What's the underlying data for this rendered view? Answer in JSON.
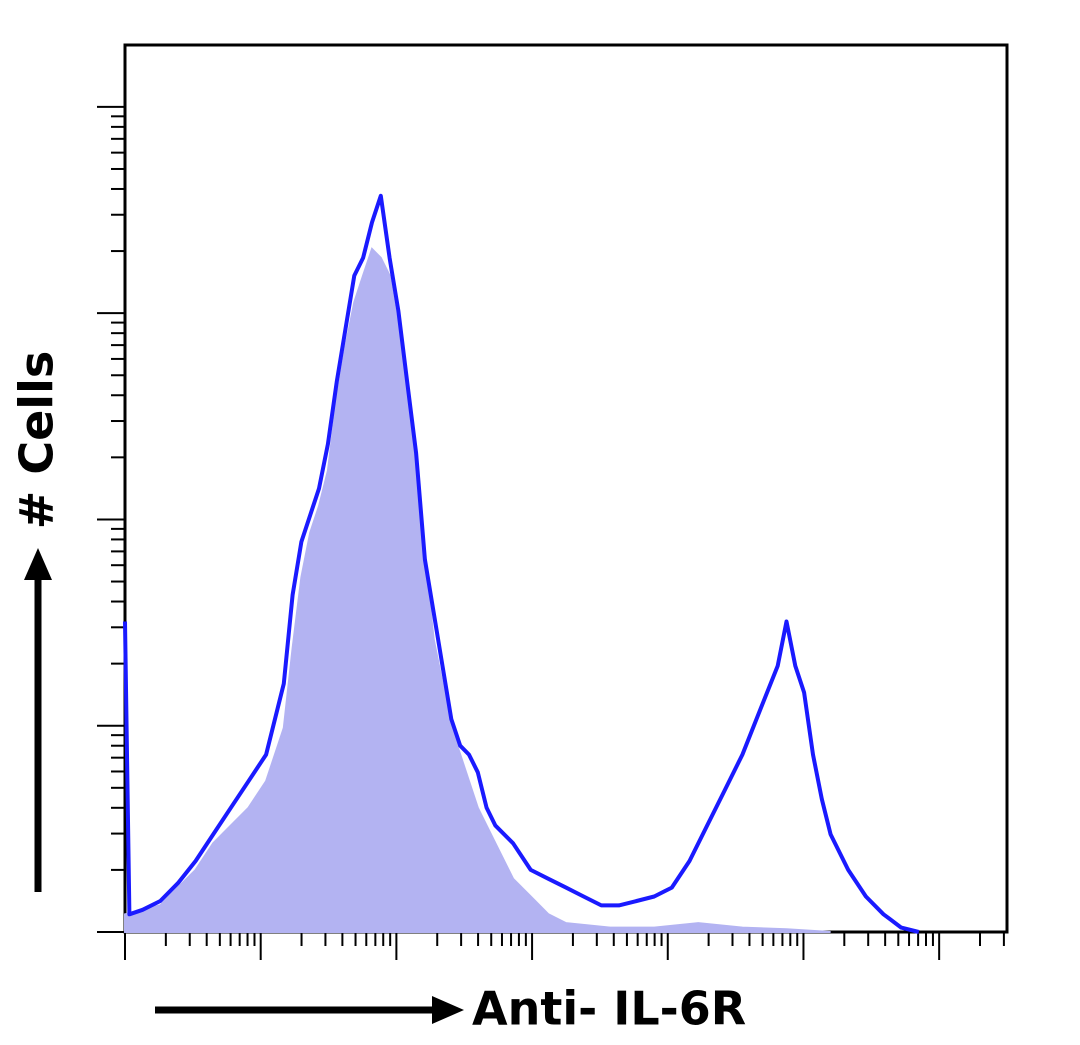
{
  "chart_data": {
    "type": "line",
    "y_label": "# Cells",
    "x_label": "Anti- IL-6R",
    "xlim": [
      0,
      100
    ],
    "ylim": [
      0,
      100
    ],
    "series": [
      {
        "color": "#b3b3f2",
        "fill": true,
        "x": [
          0,
          4,
          6,
          8,
          10,
          12,
          14,
          16,
          18,
          19,
          20,
          21,
          22,
          23,
          24,
          25,
          26,
          27,
          28,
          29,
          30,
          31,
          32,
          33,
          34,
          35,
          36,
          37,
          38,
          39,
          40,
          42,
          44,
          46,
          48,
          50,
          55,
          60,
          65,
          70,
          75,
          80
        ],
        "values": [
          2,
          3,
          5,
          7,
          10,
          12,
          14,
          17,
          23,
          32,
          40,
          45,
          48,
          52,
          60,
          66,
          71,
          74,
          77,
          76,
          74,
          68,
          60,
          52,
          42,
          33,
          28,
          23,
          20,
          17,
          14,
          10,
          6,
          4,
          2,
          1,
          0.5,
          0.5,
          1,
          0.5,
          0.3,
          0
        ]
      },
      {
        "color": "#1a1aff",
        "fill": false,
        "x": [
          0,
          0.5,
          2,
          4,
          6,
          8,
          10,
          12,
          14,
          16,
          18,
          19,
          20,
          21,
          22,
          23,
          24,
          25,
          26,
          27,
          28,
          29,
          30,
          31,
          32,
          33,
          34,
          35,
          36,
          37,
          38,
          39,
          40,
          41,
          42,
          44,
          46,
          48,
          50,
          52,
          54,
          56,
          58,
          60,
          62,
          64,
          66,
          68,
          70,
          72,
          74,
          75,
          76,
          77,
          78,
          79,
          80,
          82,
          84,
          86,
          88,
          90
        ],
        "values": [
          35,
          2,
          2.5,
          3.5,
          5.5,
          8,
          11,
          14,
          17,
          20,
          28,
          38,
          44,
          47,
          50,
          55,
          62,
          68,
          74,
          76,
          80,
          83,
          76,
          70,
          62,
          54,
          42,
          36,
          30,
          24,
          21,
          20,
          18,
          14,
          12,
          10,
          7,
          6,
          5,
          4,
          3,
          3,
          3.5,
          4,
          5,
          8,
          12,
          16,
          20,
          25,
          30,
          35,
          30,
          27,
          20,
          15,
          11,
          7,
          4,
          2,
          0.5,
          0
        ]
      }
    ]
  }
}
